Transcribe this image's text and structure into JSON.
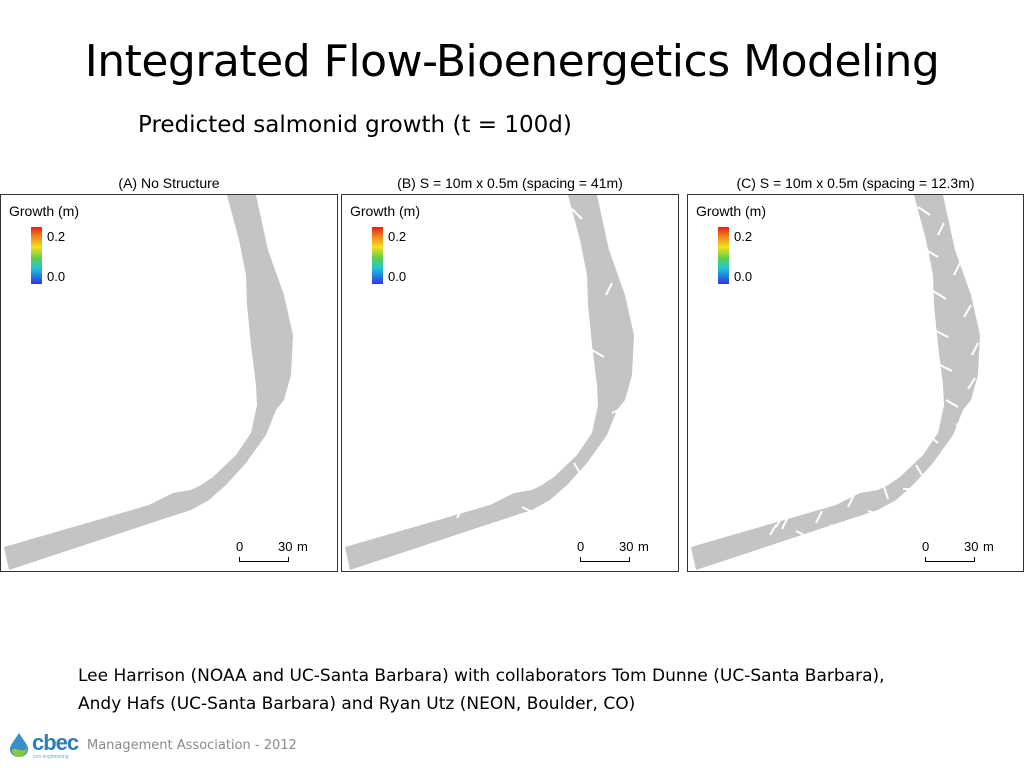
{
  "slide": {
    "title": "Integrated Flow-Bioenergetics Modeling",
    "subtitle": "Predicted salmonid growth (t = 100d)"
  },
  "panels": [
    {
      "title": "(A) No Structure",
      "legend_title": "Growth (m)",
      "cb_max": "0.2",
      "cb_min": "0.0",
      "scale_zero": "0",
      "scale_len": "30",
      "scale_unit": "m",
      "structures": 0
    },
    {
      "title": "(B) S = 10m x 0.5m (spacing = 41m)",
      "legend_title": "Growth (m)",
      "cb_max": "0.2",
      "cb_min": "0.0",
      "scale_zero": "0",
      "scale_len": "30",
      "scale_unit": "m",
      "structures": 11
    },
    {
      "title": "(C) S = 10m x 0.5m (spacing = 12.3m)",
      "legend_title": "Growth (m)",
      "cb_max": "0.2",
      "cb_min": "0.0",
      "scale_zero": "0",
      "scale_len": "30",
      "scale_unit": "m",
      "structures": 30
    }
  ],
  "colors": {
    "river": "#c4c4c4",
    "structure": "#ffffff",
    "frame": "#333333"
  },
  "credits": {
    "line1": "Lee Harrison (NOAA and UC-Santa Barbara) with collaborators Tom Dunne (UC-Santa Barbara),",
    "line2": "Andy Hafs (UC-Santa Barbara) and Ryan Utz (NEON, Boulder, CO)"
  },
  "footer": {
    "logo_text": "cbec",
    "logo_tag": "eco engineering",
    "text": "Management Association - 2012"
  }
}
